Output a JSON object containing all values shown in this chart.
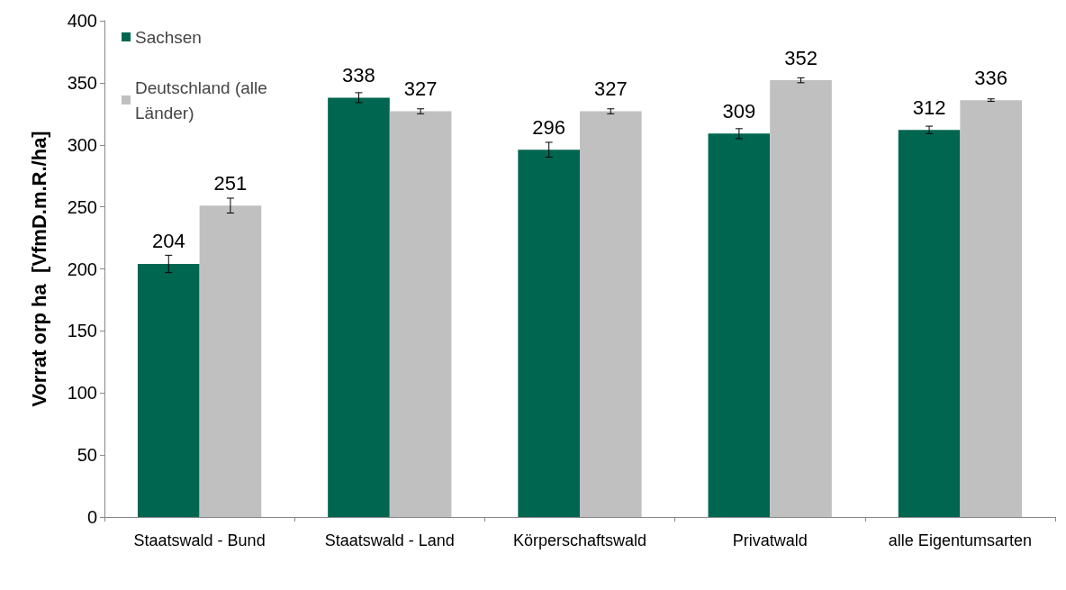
{
  "chart_data": {
    "type": "bar",
    "ylabel": "Vorrat orp ha  [VfmD.m.R./ha]",
    "categories": [
      "Staatswald - Bund",
      "Staatswald - Land",
      "Körperschaftswald",
      "Privatwald",
      "alle Eigentumsarten"
    ],
    "series": [
      {
        "name": "Sachsen",
        "color": "#00664f",
        "values": [
          204,
          338,
          296,
          309,
          312
        ],
        "errors": [
          7,
          4,
          6,
          4,
          3
        ]
      },
      {
        "name": "Deutschland (alle Länder)",
        "color": "#c0c0c0",
        "values": [
          251,
          327,
          327,
          352,
          336
        ],
        "errors": [
          6,
          2,
          2,
          2,
          1
        ]
      }
    ],
    "ylim": [
      0,
      400
    ],
    "yticks": [
      0,
      50,
      100,
      150,
      200,
      250,
      300,
      350,
      400
    ],
    "data_labels": true,
    "grid": false,
    "legend": "top left"
  }
}
